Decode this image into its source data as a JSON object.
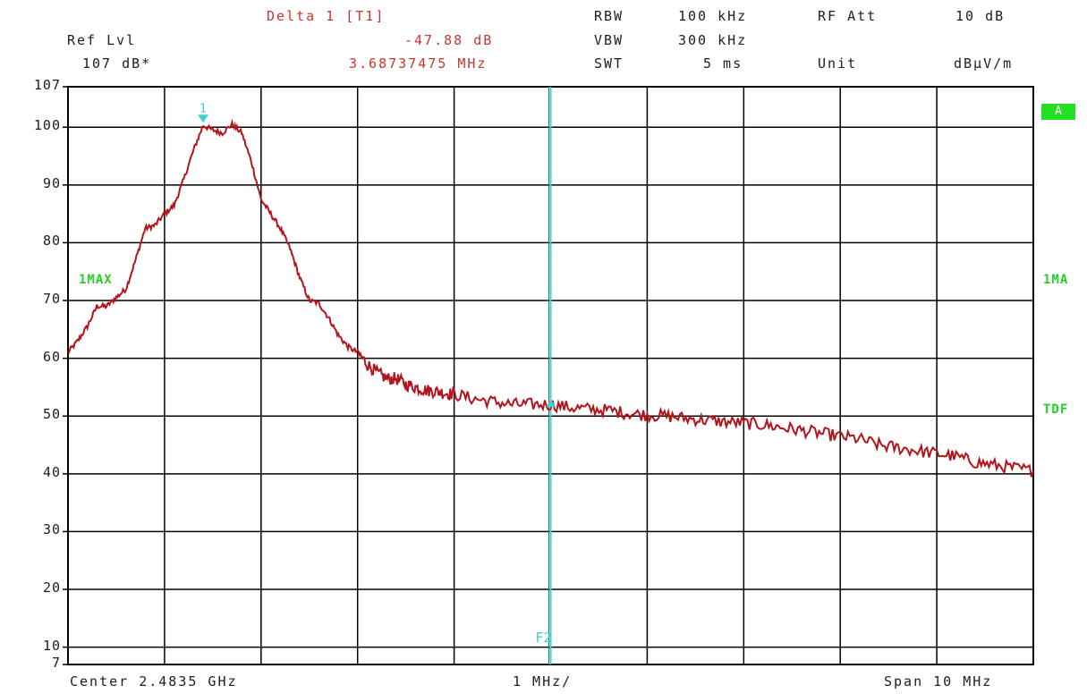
{
  "header": {
    "ref_lvl_label": "Ref Lvl",
    "ref_lvl_value": "107 dB*",
    "marker_title": "Delta 1 [T1]",
    "marker_level": "-47.88 dB",
    "marker_freq": "3.68737475 MHz",
    "rbw_label": "RBW",
    "rbw_value": "100 kHz",
    "vbw_label": "VBW",
    "vbw_value": "300 kHz",
    "swt_label": "SWT",
    "swt_value": "5 ms",
    "rfatt_label": "RF Att",
    "rfatt_value": "10 dB",
    "unit_label": "Unit",
    "unit_value": "dBµV/m"
  },
  "side_labels": {
    "trace_left": "1MAX",
    "trace_right": "1MA",
    "tdf": "TDF",
    "a_box": "A"
  },
  "markers": {
    "marker1_label": "1",
    "f2_label": "F2"
  },
  "footer": {
    "center": "Center 2.4835 GHz",
    "div": "1 MHz/",
    "span": "Span 10 MHz"
  },
  "colors": {
    "trace": "#b3151c",
    "marker": "#3fd0d0",
    "grid": "#000000",
    "label_green": "#22d022",
    "text_red": "#c8372f"
  },
  "chart_data": {
    "type": "line",
    "xlabel": "",
    "ylabel": "",
    "xlim": [
      -5,
      5
    ],
    "ylim": [
      7,
      107
    ],
    "x_unit": "MHz offset from center",
    "y_unit": "dBµV/m",
    "yticks": [
      107,
      100,
      90,
      80,
      70,
      60,
      50,
      40,
      30,
      20,
      10,
      7
    ],
    "grid": true,
    "series": [
      {
        "x": [
          -5.0,
          -4.9,
          -4.8,
          -4.7,
          -4.6,
          -4.5,
          -4.4,
          -4.3,
          -4.2,
          -4.1,
          -4.0,
          -3.9,
          -3.8,
          -3.7,
          -3.6,
          -3.5,
          -3.4,
          -3.3,
          -3.2,
          -3.1,
          -3.0,
          -2.9,
          -2.8,
          -2.7,
          -2.6,
          -2.5,
          -2.4,
          -2.3,
          -2.2,
          -2.1,
          -2.0,
          -1.9,
          -1.8,
          -1.7,
          -1.6,
          -1.5,
          -1.4,
          -1.3,
          -1.2,
          -1.1,
          -1.0,
          -0.8,
          -0.6,
          -0.4,
          -0.2,
          0.0,
          0.2,
          0.4,
          0.6,
          0.8,
          1.0,
          1.2,
          1.4,
          1.6,
          1.8,
          2.0,
          2.2,
          2.4,
          2.6,
          2.8,
          3.0,
          3.2,
          3.4,
          3.6,
          3.8,
          4.0,
          4.2,
          4.4,
          4.6,
          4.8,
          5.0
        ],
        "y": [
          61.0,
          63.0,
          65.5,
          69.0,
          69.0,
          70.5,
          72.0,
          77.0,
          82.5,
          83.0,
          85.0,
          86.5,
          91.0,
          96.0,
          100.3,
          99.5,
          99.0,
          100.5,
          99.0,
          94.0,
          87.5,
          85.0,
          82.5,
          79.0,
          74.0,
          70.0,
          69.5,
          67.0,
          64.0,
          62.0,
          61.0,
          59.0,
          57.5,
          56.5,
          56.5,
          55.5,
          55.0,
          54.5,
          54.3,
          54.0,
          53.8,
          53.0,
          52.5,
          52.0,
          52.0,
          52.0,
          51.5,
          51.2,
          51.0,
          50.5,
          50.2,
          50.0,
          49.6,
          49.3,
          49.0,
          48.8,
          48.5,
          48.0,
          47.5,
          47.0,
          46.5,
          46.0,
          45.0,
          44.5,
          44.0,
          43.5,
          43.0,
          42.0,
          41.5,
          41.0,
          40.5
        ]
      }
    ],
    "markers": [
      {
        "name": "1",
        "x": -3.6,
        "y": 100.3
      },
      {
        "name": "Delta 1",
        "x": 0.0,
        "y": 52.5
      }
    ],
    "vertical_lines": [
      {
        "name": "F2",
        "x": 0.0
      }
    ]
  }
}
